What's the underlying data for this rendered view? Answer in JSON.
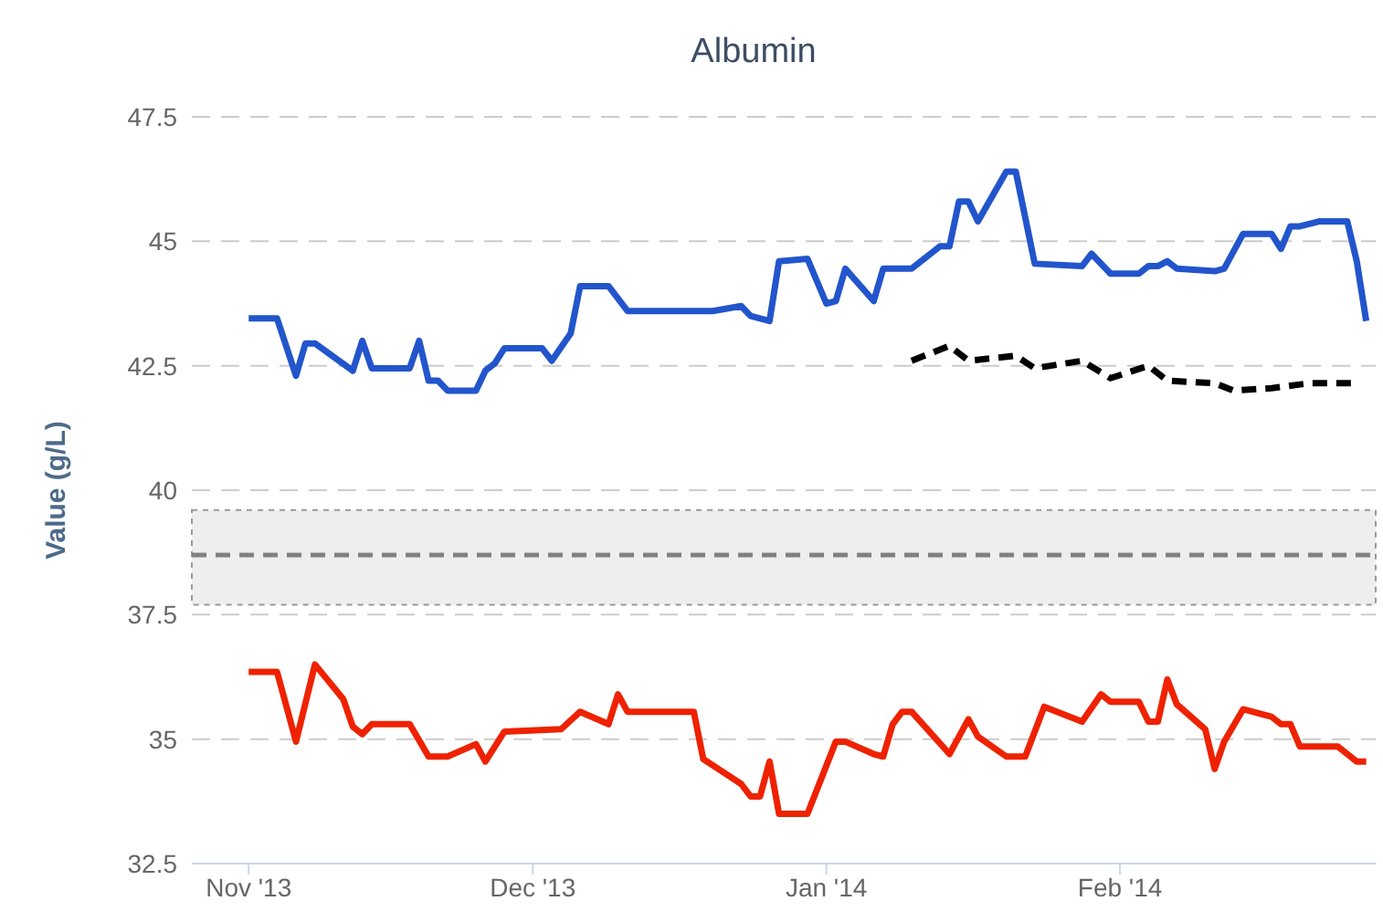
{
  "chart_data": {
    "type": "line",
    "title": "Albumin",
    "ylabel": "Value (g/L)",
    "xlim": [
      "2013-10-26",
      "2014-02-28"
    ],
    "xticks": [
      {
        "value": "2013-11-01",
        "label": "Nov '13"
      },
      {
        "value": "2013-12-01",
        "label": "Dec '13"
      },
      {
        "value": "2014-01-01",
        "label": "Jan '14"
      },
      {
        "value": "2014-02-01",
        "label": "Feb '14"
      }
    ],
    "ylim": [
      32.5,
      47.5
    ],
    "yticks": [
      32.5,
      35,
      37.5,
      40,
      42.5,
      45,
      47.5
    ],
    "grid": "y",
    "marker": "none",
    "ref_lines": [
      {
        "axis": "y",
        "value": 38.7,
        "color": "#808080",
        "line_style": "dashed"
      }
    ],
    "bands": [
      {
        "axis": "y",
        "from": 37.7,
        "to": 39.6,
        "color": "#eeeeee"
      }
    ],
    "series": [
      {
        "color": "#2255cc",
        "line_style": "solid",
        "x": [
          "2013-11-01",
          "2013-11-04",
          "2013-11-06",
          "2013-11-07",
          "2013-11-08",
          "2013-11-12",
          "2013-11-13",
          "2013-11-14",
          "2013-11-18",
          "2013-11-19",
          "2013-11-20",
          "2013-11-21",
          "2013-11-22",
          "2013-11-25",
          "2013-11-26",
          "2013-11-27",
          "2013-11-28",
          "2013-12-02",
          "2013-12-03",
          "2013-12-05",
          "2013-12-06",
          "2013-12-09",
          "2013-12-11",
          "2013-12-20",
          "2013-12-23",
          "2013-12-24",
          "2013-12-26",
          "2013-12-27",
          "2013-12-30",
          "2014-01-01",
          "2014-01-02",
          "2014-01-03",
          "2014-01-06",
          "2014-01-07",
          "2014-01-10",
          "2014-01-13",
          "2014-01-14",
          "2014-01-15",
          "2014-01-16",
          "2014-01-17",
          "2014-01-20",
          "2014-01-21",
          "2014-01-23",
          "2014-01-28",
          "2014-01-29",
          "2014-01-31",
          "2014-02-03",
          "2014-02-04",
          "2014-02-05",
          "2014-02-06",
          "2014-02-07",
          "2014-02-11",
          "2014-02-12",
          "2014-02-14",
          "2014-02-17",
          "2014-02-18",
          "2014-02-19",
          "2014-02-20",
          "2014-02-22",
          "2014-02-25",
          "2014-02-26",
          "2014-02-27"
        ],
        "values": [
          43.45,
          43.45,
          42.3,
          42.95,
          42.95,
          42.4,
          43.0,
          42.45,
          42.45,
          43.0,
          42.2,
          42.2,
          42.0,
          42.0,
          42.4,
          42.55,
          42.85,
          42.85,
          42.6,
          43.15,
          44.1,
          44.1,
          43.6,
          43.6,
          43.7,
          43.5,
          43.4,
          44.6,
          44.65,
          43.75,
          43.8,
          44.45,
          43.8,
          44.45,
          44.45,
          44.9,
          44.9,
          45.8,
          45.8,
          45.4,
          46.4,
          46.4,
          44.55,
          44.5,
          44.75,
          44.35,
          44.35,
          44.5,
          44.5,
          44.6,
          44.45,
          44.4,
          44.45,
          45.15,
          45.15,
          44.85,
          45.3,
          45.3,
          45.4,
          45.4,
          44.6,
          43.4
        ]
      },
      {
        "color": "#000000",
        "line_style": "dashed",
        "x": [
          "2014-01-10",
          "2014-01-14",
          "2014-01-16",
          "2014-01-21",
          "2014-01-23",
          "2014-01-28",
          "2014-01-31",
          "2014-02-04",
          "2014-02-06",
          "2014-02-11",
          "2014-02-13",
          "2014-02-17",
          "2014-02-21",
          "2014-02-26"
        ],
        "values": [
          42.6,
          42.9,
          42.6,
          42.7,
          42.45,
          42.6,
          42.25,
          42.5,
          42.2,
          42.15,
          42.0,
          42.05,
          42.15,
          42.15
        ]
      },
      {
        "color": "#ee2200",
        "line_style": "solid",
        "x": [
          "2013-11-01",
          "2013-11-04",
          "2013-11-06",
          "2013-11-08",
          "2013-11-11",
          "2013-11-12",
          "2013-11-13",
          "2013-11-14",
          "2013-11-18",
          "2013-11-20",
          "2013-11-22",
          "2013-11-25",
          "2013-11-26",
          "2013-11-28",
          "2013-12-04",
          "2013-12-06",
          "2013-12-09",
          "2013-12-10",
          "2013-12-11",
          "2013-12-18",
          "2013-12-19",
          "2013-12-21",
          "2013-12-23",
          "2013-12-24",
          "2013-12-25",
          "2013-12-26",
          "2013-12-27",
          "2013-12-30",
          "2014-01-02",
          "2014-01-03",
          "2014-01-06",
          "2014-01-07",
          "2014-01-08",
          "2014-01-09",
          "2014-01-10",
          "2014-01-14",
          "2014-01-16",
          "2014-01-17",
          "2014-01-20",
          "2014-01-22",
          "2014-01-24",
          "2014-01-28",
          "2014-01-30",
          "2014-01-31",
          "2014-02-03",
          "2014-02-04",
          "2014-02-05",
          "2014-02-06",
          "2014-02-07",
          "2014-02-10",
          "2014-02-11",
          "2014-02-12",
          "2014-02-14",
          "2014-02-17",
          "2014-02-18",
          "2014-02-19",
          "2014-02-20",
          "2014-02-24",
          "2014-02-26",
          "2014-02-27"
        ],
        "values": [
          36.35,
          36.35,
          34.95,
          36.5,
          35.8,
          35.25,
          35.1,
          35.3,
          35.3,
          34.65,
          34.65,
          34.9,
          34.55,
          35.15,
          35.2,
          35.55,
          35.3,
          35.9,
          35.55,
          35.55,
          34.6,
          34.35,
          34.1,
          33.85,
          33.85,
          34.55,
          33.5,
          33.5,
          34.95,
          34.95,
          34.7,
          34.65,
          35.3,
          35.55,
          35.55,
          34.7,
          35.4,
          35.05,
          34.65,
          34.65,
          35.65,
          35.35,
          35.9,
          35.75,
          35.75,
          35.35,
          35.35,
          36.2,
          35.7,
          35.2,
          34.4,
          34.95,
          35.6,
          35.45,
          35.3,
          35.3,
          34.85,
          34.85,
          34.55,
          34.55
        ]
      }
    ]
  }
}
